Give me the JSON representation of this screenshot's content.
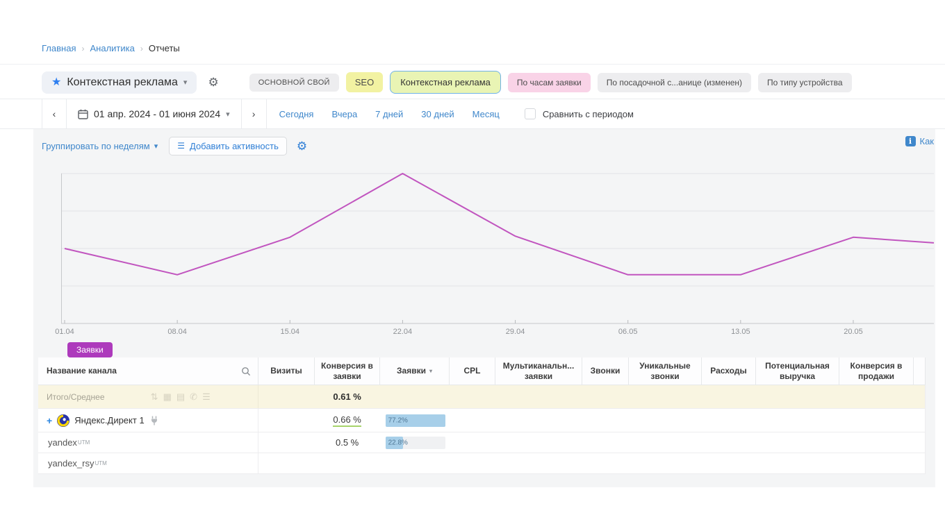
{
  "breadcrumb": {
    "items": [
      "Главная",
      "Аналитика",
      "Отчеты"
    ]
  },
  "report_selector": {
    "label": "Контекстная реклама",
    "star_icon": "star-icon",
    "chevron_icon": "chevron-down-icon"
  },
  "tabs": [
    {
      "label": "ОСНОВНОЙ СВОЙ",
      "style": "gray-upper",
      "selected": false
    },
    {
      "label": "SEO",
      "style": "yellow",
      "selected": false
    },
    {
      "label": "Контекстная реклама",
      "style": "selected",
      "selected": true
    },
    {
      "label": "По часам заявки",
      "style": "pink",
      "selected": false
    },
    {
      "label": "По посадочной с...анице (изменен)",
      "style": "gray",
      "selected": false
    },
    {
      "label": "По типу устройства",
      "style": "gray",
      "selected": false
    }
  ],
  "date_bar": {
    "range_label": "01 апр. 2024 - 01 июня 2024",
    "quick_links": [
      "Сегодня",
      "Вчера",
      "7 дней",
      "30 дней",
      "Месяц"
    ],
    "compare_checkbox": {
      "label": "Сравнить с периодом",
      "checked": false
    }
  },
  "controls": {
    "group_by_label": "Группировать по неделям",
    "add_activity_label": "Добавить активность",
    "help_label": "Как"
  },
  "chart_data": {
    "type": "line",
    "title": "",
    "xlabel": "",
    "ylabel": "",
    "series": [
      {
        "name": "Заявки",
        "values": [
          2.0,
          1.3,
          2.3,
          4.0,
          2.33,
          1.3,
          1.3,
          2.3
        ]
      }
    ],
    "categories": [
      "01.04",
      "08.04",
      "15.04",
      "22.04",
      "29.04",
      "06.05",
      "13.05",
      "20.05"
    ],
    "edge_value": 2.15,
    "ylim": [
      0,
      4.5
    ],
    "y_axis_labels": "none (unlabeled axis, values estimated in gridline units, 1 gridline = 1 unit)",
    "grid": "horizontal gridlines at 1,2,3,4",
    "line_color": "#c155bf",
    "legend_position": "bottom-left badge"
  },
  "legend": {
    "badge_label": "Заявки",
    "badge_color": "#ad3abc"
  },
  "table": {
    "columns": [
      "Название канала",
      "Визиты",
      "Конверсия в заявки",
      "Заявки",
      "CPL",
      "Мультиканальн... заявки",
      "Звонки",
      "Уникальные звонки",
      "Расходы",
      "Потенциальная выручка",
      "Конверсия в продажи"
    ],
    "sorted_column": "Заявки",
    "sort_direction": "desc",
    "rows": [
      {
        "type": "total",
        "name": "Итого/Среднее",
        "conversion": "0.61 %"
      },
      {
        "type": "channel",
        "name": "Яндекс.Директ 1",
        "conversion": "0.66 %",
        "leads_share_label": "77.2%",
        "leads_share_pct": 77.2
      },
      {
        "type": "sub",
        "name": "yandex",
        "name_sup": "UTM",
        "conversion": "0.5 %",
        "leads_share_label": "22.8%",
        "leads_share_pct": 22.8
      },
      {
        "type": "sub",
        "name": "yandex_rsy",
        "name_sup": "UTM"
      }
    ]
  }
}
